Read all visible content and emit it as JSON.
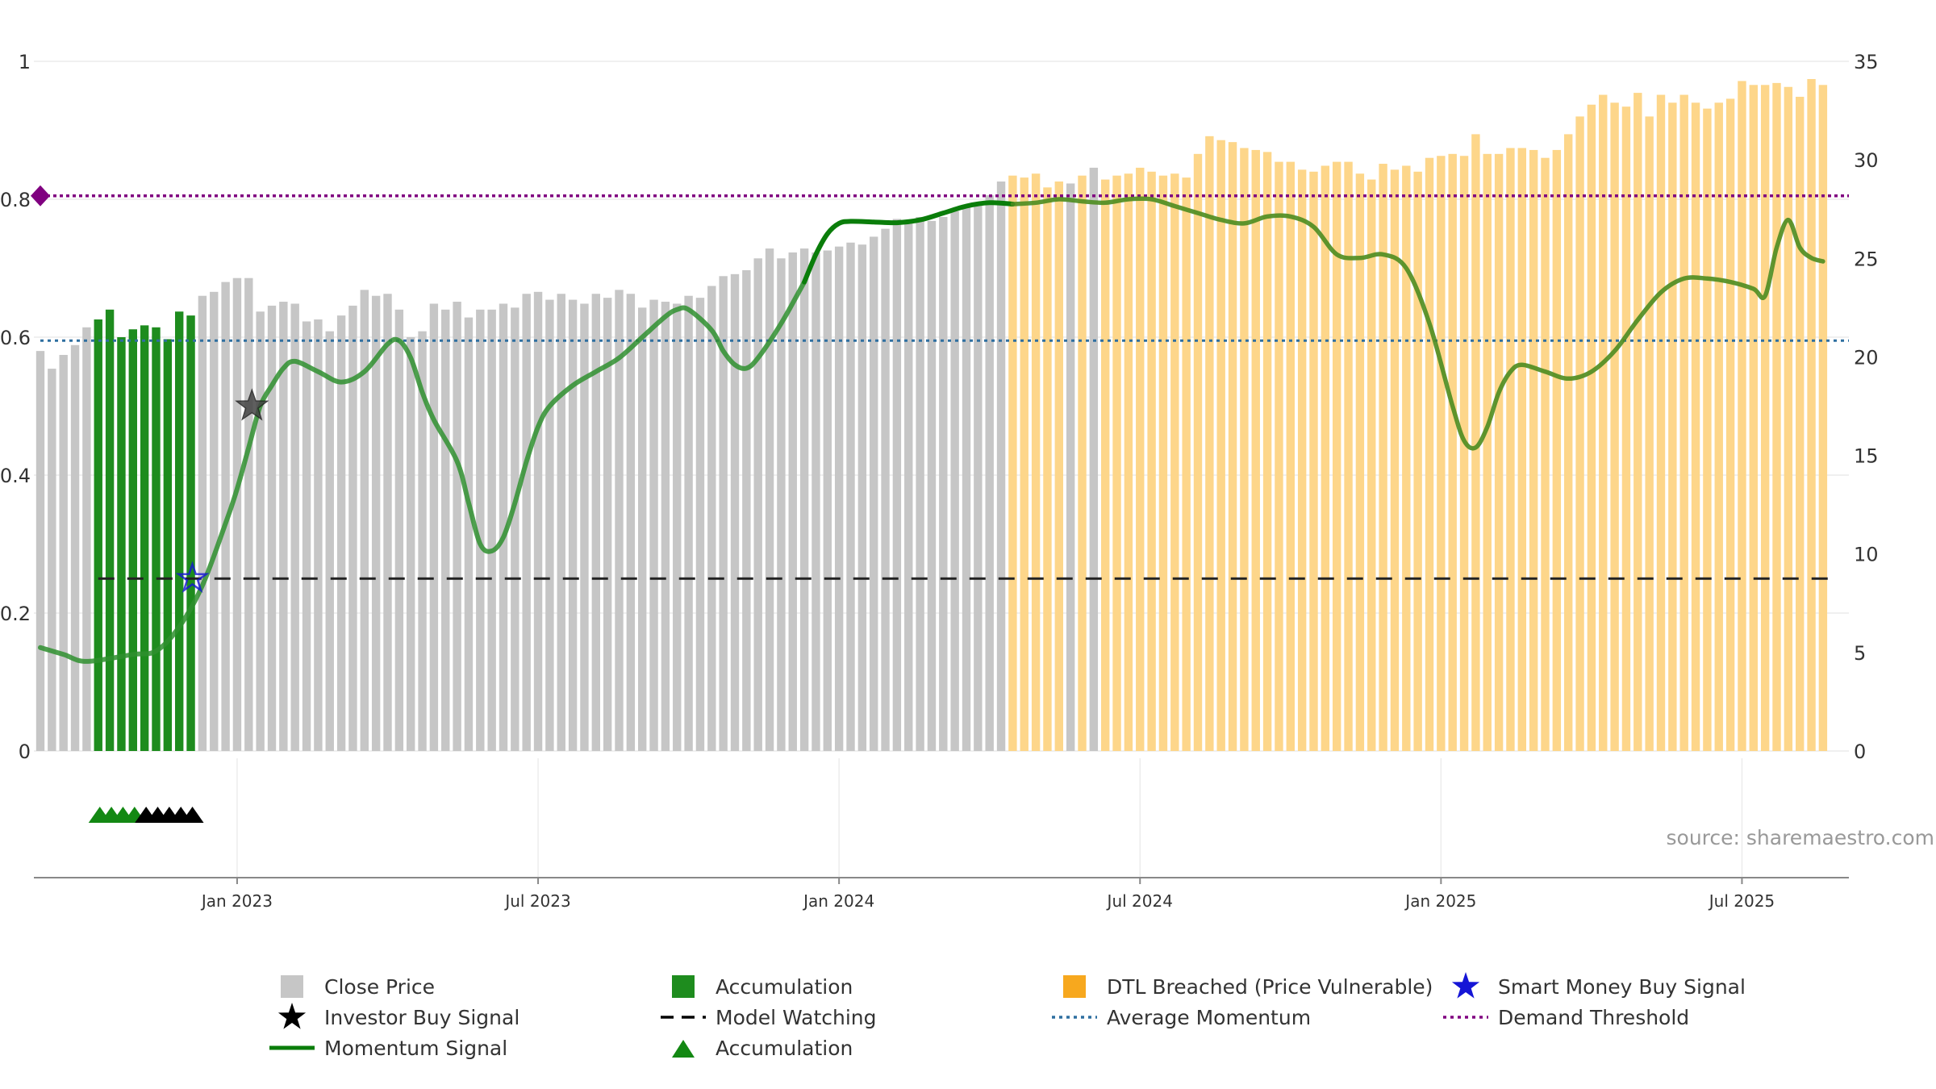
{
  "chart_data": {
    "type": "bar",
    "title": "",
    "source": "source: sharemaestro.com",
    "left_axis": {
      "ticks": [
        "0",
        "0.2",
        "0.4",
        "0.6",
        "0.8",
        "1"
      ],
      "range": [
        0,
        1
      ]
    },
    "right_axis": {
      "ticks": [
        "0",
        "5",
        "10",
        "15",
        "20",
        "25",
        "30",
        "35"
      ],
      "range": [
        0,
        35
      ]
    },
    "x_ticks": [
      "Jan 2023",
      "Jul 2023",
      "Jan 2024",
      "Jul 2024",
      "Jan 2025",
      "Jul 2025"
    ],
    "x_tick_weeks": [
      17,
      43,
      69,
      95,
      121,
      147
    ],
    "price_weekly": [
      20.3,
      19.4,
      20.1,
      20.6,
      21.5,
      21.9,
      22.4,
      21.0,
      21.4,
      21.6,
      21.5,
      20.9,
      22.3,
      22.1,
      23.1,
      23.3,
      23.8,
      24.0,
      24.0,
      22.3,
      22.6,
      22.8,
      22.7,
      21.8,
      21.9,
      21.3,
      22.1,
      22.6,
      23.4,
      23.1,
      23.2,
      22.4,
      21.0,
      21.3,
      22.7,
      22.4,
      22.8,
      22.0,
      22.4,
      22.4,
      22.7,
      22.5,
      23.2,
      23.3,
      22.9,
      23.2,
      22.9,
      22.7,
      23.2,
      23.0,
      23.4,
      23.2,
      22.5,
      22.9,
      22.8,
      22.7,
      23.1,
      23.0,
      23.6,
      24.1,
      24.2,
      24.4,
      25.0,
      25.5,
      25.0,
      25.3,
      25.5,
      25.3,
      25.4,
      25.6,
      25.8,
      25.7,
      26.1,
      26.5,
      27.0,
      26.9,
      27.1,
      26.9,
      27.1,
      27.4,
      27.6,
      27.7,
      28.2,
      28.9,
      29.2,
      29.1,
      29.3,
      28.6,
      28.9,
      28.8,
      29.2,
      29.6,
      29.0,
      29.2,
      29.3,
      29.6,
      29.4,
      29.2,
      29.3,
      29.1,
      30.3,
      31.2,
      31.0,
      30.9,
      30.6,
      30.5,
      30.4,
      29.9,
      29.9,
      29.5,
      29.4,
      29.7,
      29.9,
      29.9,
      29.3,
      29.0,
      29.8,
      29.5,
      29.7,
      29.4,
      30.1,
      30.2,
      30.3,
      30.2,
      31.3,
      30.3,
      30.3,
      30.6,
      30.6,
      30.5,
      30.1,
      30.5,
      31.3,
      32.2,
      32.8,
      33.3,
      32.9,
      32.7,
      33.4,
      32.2,
      33.3,
      32.9,
      33.3,
      32.9,
      32.6,
      32.9,
      33.1,
      34.0,
      33.8,
      33.8,
      33.9,
      33.7,
      33.2,
      34.1,
      33.8
    ],
    "bar_category_runs": [
      {
        "category": "Close Price",
        "from": 0,
        "to": 4
      },
      {
        "category": "Accumulation",
        "from": 5,
        "to": 13
      },
      {
        "category": "Close Price",
        "from": 14,
        "to": 83
      },
      {
        "category": "DTL Breached (Price Vulnerable)",
        "from": 84,
        "to": 88
      },
      {
        "category": "Close Price",
        "from": 89,
        "to": 89
      },
      {
        "category": "DTL Breached (Price Vulnerable)",
        "from": 90,
        "to": 90
      },
      {
        "category": "Close Price",
        "from": 91,
        "to": 91
      },
      {
        "category": "DTL Breached (Price Vulnerable)",
        "from": 92,
        "to": 155
      }
    ],
    "momentum_keypoints": [
      [
        0,
        0.15
      ],
      [
        2,
        0.14
      ],
      [
        4,
        0.13
      ],
      [
        8,
        0.14
      ],
      [
        10,
        0.145
      ],
      [
        12,
        0.18
      ],
      [
        14,
        0.24
      ],
      [
        16,
        0.33
      ],
      [
        17,
        0.38
      ],
      [
        18,
        0.44
      ],
      [
        19,
        0.5
      ],
      [
        20,
        0.53
      ],
      [
        21,
        0.555
      ],
      [
        22,
        0.565
      ],
      [
        24,
        0.55
      ],
      [
        26,
        0.535
      ],
      [
        28,
        0.55
      ],
      [
        30,
        0.59
      ],
      [
        31,
        0.595
      ],
      [
        32,
        0.57
      ],
      [
        33,
        0.52
      ],
      [
        34,
        0.48
      ],
      [
        36,
        0.42
      ],
      [
        37,
        0.36
      ],
      [
        38,
        0.3
      ],
      [
        39,
        0.29
      ],
      [
        40,
        0.31
      ],
      [
        41,
        0.36
      ],
      [
        42,
        0.42
      ],
      [
        43,
        0.47
      ],
      [
        44,
        0.5
      ],
      [
        46,
        0.53
      ],
      [
        48,
        0.55
      ],
      [
        50,
        0.57
      ],
      [
        52,
        0.6
      ],
      [
        54,
        0.63
      ],
      [
        55,
        0.64
      ],
      [
        56,
        0.64
      ],
      [
        58,
        0.61
      ],
      [
        59,
        0.58
      ],
      [
        60,
        0.56
      ],
      [
        61,
        0.555
      ],
      [
        62,
        0.57
      ],
      [
        64,
        0.62
      ],
      [
        66,
        0.68
      ],
      [
        67,
        0.72
      ],
      [
        68,
        0.75
      ],
      [
        69,
        0.765
      ],
      [
        70,
        0.768
      ],
      [
        72,
        0.767
      ],
      [
        74,
        0.766
      ],
      [
        76,
        0.77
      ],
      [
        78,
        0.78
      ],
      [
        80,
        0.79
      ],
      [
        82,
        0.795
      ],
      [
        84,
        0.793
      ],
      [
        86,
        0.795
      ],
      [
        88,
        0.8
      ],
      [
        90,
        0.797
      ],
      [
        92,
        0.795
      ],
      [
        94,
        0.8
      ],
      [
        96,
        0.8
      ],
      [
        98,
        0.79
      ],
      [
        100,
        0.78
      ],
      [
        102,
        0.77
      ],
      [
        104,
        0.765
      ],
      [
        106,
        0.775
      ],
      [
        108,
        0.775
      ],
      [
        110,
        0.76
      ],
      [
        112,
        0.72
      ],
      [
        114,
        0.715
      ],
      [
        116,
        0.72
      ],
      [
        118,
        0.7
      ],
      [
        120,
        0.62
      ],
      [
        122,
        0.5
      ],
      [
        123,
        0.45
      ],
      [
        124,
        0.44
      ],
      [
        125,
        0.47
      ],
      [
        126,
        0.52
      ],
      [
        127,
        0.55
      ],
      [
        128,
        0.56
      ],
      [
        130,
        0.55
      ],
      [
        132,
        0.54
      ],
      [
        134,
        0.55
      ],
      [
        136,
        0.58
      ],
      [
        138,
        0.625
      ],
      [
        140,
        0.665
      ],
      [
        142,
        0.685
      ],
      [
        144,
        0.685
      ],
      [
        146,
        0.68
      ],
      [
        148,
        0.67
      ],
      [
        149,
        0.66
      ],
      [
        150,
        0.73
      ],
      [
        151,
        0.77
      ],
      [
        152,
        0.73
      ],
      [
        153,
        0.715
      ],
      [
        154,
        0.71
      ]
    ],
    "momentum_dark_from_week": 84,
    "model_watching": {
      "value": 0.25,
      "from_week": 5,
      "to_week": 155
    },
    "average_momentum": 0.595,
    "demand_threshold": 0.805,
    "investor_buy_signal": {
      "week": 18,
      "value": 0.5
    },
    "smart_money_buy_signal": {
      "week": 13,
      "value": 0.25
    },
    "accumulation_markers": {
      "green_weeks": [
        5,
        6,
        7,
        8
      ],
      "black_weeks": [
        9,
        10,
        11,
        12,
        13
      ]
    },
    "legend": [
      {
        "symbol": "gray-square-icon",
        "label": "Close Price"
      },
      {
        "symbol": "green-square-icon",
        "label": "Accumulation"
      },
      {
        "symbol": "orange-square-icon",
        "label": "DTL Breached (Price Vulnerable)"
      },
      {
        "symbol": "blue-star-icon",
        "label": "Smart Money Buy Signal"
      },
      {
        "symbol": "black-star-icon",
        "label": "Investor Buy Signal"
      },
      {
        "symbol": "dashed-line-icon",
        "label": "Model Watching"
      },
      {
        "symbol": "dotted-blue-line-icon",
        "label": "Average Momentum"
      },
      {
        "symbol": "dotted-purple-line-icon",
        "label": "Demand Threshold"
      },
      {
        "symbol": "green-line-icon",
        "label": "Momentum Signal"
      },
      {
        "symbol": "green-triangle-icon",
        "label": "Accumulation"
      }
    ],
    "colors": {
      "close_price": "#c6c6c6",
      "accumulation": "#1e8c1e",
      "dtl": "#fdd68a",
      "momentum": "#0a7d0a",
      "momentum_light": "#4a9a4a",
      "avg_momentum": "#2e6fa0",
      "threshold": "#800080",
      "smart_money": "#1515d6"
    }
  }
}
